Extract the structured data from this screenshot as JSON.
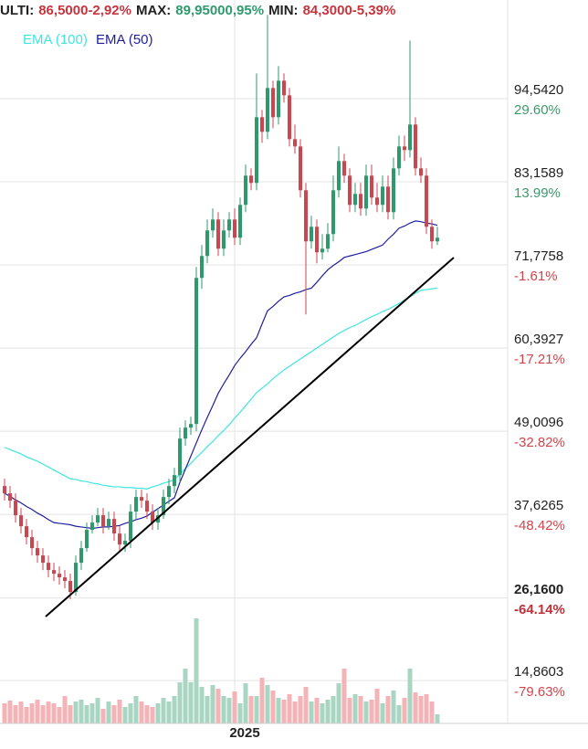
{
  "chart_data": {
    "type": "candlestick",
    "header": [
      {
        "text": "ULTI:",
        "color": "#222222"
      },
      {
        "text": "86,5000-2,92%",
        "color": "#c8343e"
      },
      {
        "text": "MAX:",
        "color": "#222222"
      },
      {
        "text": "89,95000,95%",
        "color": "#2e9a6c"
      },
      {
        "text": "MIN:",
        "color": "#222222"
      },
      {
        "text": "84,3000-5,39%",
        "color": "#c8343e"
      }
    ],
    "categories": [
      null,
      null,
      null,
      null,
      null,
      null,
      null,
      null,
      null,
      null,
      null,
      null,
      null,
      null,
      null,
      null,
      null,
      null,
      null,
      null,
      null,
      null,
      null,
      null,
      null,
      null,
      null,
      null,
      null,
      null,
      null,
      null,
      null,
      null,
      null,
      null,
      null,
      null,
      null,
      null,
      null,
      null,
      "2025",
      null,
      null,
      null,
      null,
      null,
      null,
      null,
      null,
      null,
      null,
      null,
      null,
      null,
      null,
      null,
      null,
      null,
      null,
      null,
      null,
      null,
      null,
      null,
      null,
      null,
      null,
      null,
      null,
      null,
      null,
      null,
      null,
      null,
      null,
      null,
      null,
      null
    ],
    "open": [
      41.5,
      40.5,
      39.5,
      37.5,
      36,
      34.5,
      33,
      32,
      31,
      30,
      29.5,
      29,
      28.5,
      27,
      31,
      33,
      35.5,
      36.5,
      37.5,
      36,
      37,
      35,
      33.5,
      34,
      38,
      40,
      39.5,
      38,
      36.5,
      37.5,
      40,
      41.5,
      43,
      48,
      49.5,
      50,
      70,
      73,
      76.5,
      78,
      74,
      76.5,
      78,
      75.5,
      80,
      84,
      83,
      92,
      90,
      96,
      92,
      97,
      95,
      89,
      88,
      82,
      75,
      77,
      73.5,
      74,
      76,
      82,
      86,
      84,
      80,
      81.5,
      79.5,
      84,
      81,
      80,
      82.5,
      79,
      85,
      88,
      87.5,
      91,
      85,
      84,
      77,
      75
    ],
    "high": [
      42.5,
      41.5,
      40.5,
      38.5,
      37,
      35.5,
      34,
      33,
      32,
      31,
      30.5,
      30,
      29.5,
      32,
      34,
      36.5,
      37.5,
      38.5,
      38.5,
      38,
      38,
      36,
      35,
      39,
      41,
      41,
      40.5,
      39,
      38.5,
      41,
      42.5,
      44,
      49.5,
      50.5,
      51,
      71.5,
      74.5,
      78,
      79.5,
      79,
      78,
      79,
      79.5,
      81,
      85.5,
      85,
      98,
      93,
      106,
      97,
      99,
      98,
      96,
      91,
      89,
      83,
      78.5,
      78,
      76,
      77.5,
      84,
      88,
      87,
      85,
      83,
      83,
      85.5,
      85.5,
      83,
      84,
      84,
      86.5,
      89.5,
      89.5,
      102.5,
      92,
      86.5,
      85,
      78,
      77
    ],
    "low": [
      39.5,
      38.5,
      36.5,
      35,
      33.5,
      32,
      31,
      30,
      29,
      28.5,
      28,
      27.5,
      26,
      26.5,
      30,
      32.5,
      35,
      36,
      35,
      35.5,
      34,
      32.5,
      32.5,
      33,
      37,
      38.5,
      37,
      35.5,
      35.5,
      37,
      39,
      40.5,
      42,
      47,
      48.5,
      49,
      68.5,
      72,
      75.5,
      73,
      73,
      75.5,
      74.5,
      74.5,
      79,
      82,
      82,
      88.5,
      89,
      90.5,
      91,
      94,
      88,
      87,
      81,
      65,
      74,
      72,
      72.5,
      73.5,
      75,
      81,
      83,
      79,
      79,
      78.5,
      78.5,
      80,
      79,
      79,
      78,
      78,
      84,
      86,
      86.5,
      84,
      83,
      76,
      74,
      74.5
    ],
    "close": [
      40.5,
      39.5,
      37.5,
      36,
      34.5,
      33,
      32,
      31,
      30,
      29.5,
      29,
      28.5,
      27,
      31,
      33,
      35.5,
      36.5,
      37.5,
      36,
      37,
      35,
      33.5,
      34,
      38,
      40,
      39.5,
      38,
      36.5,
      37.5,
      40,
      41.5,
      43,
      48,
      49.5,
      50,
      70,
      73,
      76.5,
      78,
      74,
      76.5,
      78,
      75.5,
      80,
      84,
      83,
      92,
      90,
      96,
      92,
      97,
      95,
      89,
      88,
      82,
      75,
      77,
      73.5,
      74,
      76,
      82,
      86,
      84,
      80,
      81.5,
      79.5,
      84,
      81,
      80,
      82.5,
      79,
      85,
      88,
      87.5,
      91,
      85,
      84,
      77,
      75,
      75.5
    ],
    "up_color": "#2e9a6c",
    "down_color": "#cc4650",
    "volume": [
      22,
      25,
      20,
      24,
      18,
      22,
      26,
      20,
      24,
      22,
      18,
      30,
      20,
      24,
      26,
      20,
      22,
      28,
      16,
      24,
      20,
      26,
      18,
      22,
      30,
      24,
      20,
      18,
      22,
      28,
      24,
      30,
      45,
      60,
      45,
      115,
      40,
      30,
      42,
      38,
      30,
      28,
      35,
      22,
      44,
      30,
      30,
      50,
      42,
      36,
      28,
      26,
      32,
      24,
      30,
      40,
      24,
      28,
      22,
      26,
      30,
      44,
      60,
      28,
      32,
      30,
      24,
      26,
      38,
      22,
      30,
      36,
      20,
      28,
      60,
      34,
      30,
      32,
      24,
      10
    ],
    "volume_up_color": "#a9d6c3",
    "volume_down_color": "#f4b3b6",
    "series": [
      {
        "name": "EMA (100)",
        "color": "#3fe6df",
        "values": [
          46.8,
          46.5,
          46.2,
          45.9,
          45.5,
          45.2,
          44.9,
          44.5,
          44.1,
          43.7,
          43.3,
          42.9,
          42.5,
          42.4,
          42.2,
          42.1,
          41.9,
          41.8,
          41.6,
          41.5,
          41.4,
          41.4,
          41.3,
          41.3,
          41.2,
          41.2,
          41.1,
          41.4,
          41.6,
          41.9,
          42.1,
          42.4,
          43.1,
          43.9,
          44.6,
          45.4,
          46.1,
          46.9,
          47.6,
          48.4,
          49.1,
          49.9,
          50.8,
          51.6,
          52.5,
          53.4,
          54.3,
          54.9,
          55.5,
          56.2,
          56.8,
          57.4,
          57.9,
          58.4,
          58.9,
          59.4,
          59.9,
          60.4,
          60.9,
          61.4,
          61.9,
          62.4,
          62.8,
          63.2,
          63.5,
          63.9,
          64.3,
          64.7,
          65.0,
          65.4,
          65.7,
          66.1,
          66.5,
          67.0,
          67.4,
          67.9,
          68.3,
          68.4,
          68.5,
          68.6
        ]
      },
      {
        "name": "EMA (50)",
        "color": "#1f1f9e",
        "values": [
          40.5,
          40.1,
          39.6,
          39.2,
          38.7,
          38.3,
          37.8,
          37.4,
          36.9,
          36.5,
          36.4,
          36.3,
          36.2,
          36.0,
          35.9,
          35.8,
          35.7,
          35.8,
          35.9,
          35.9,
          36.0,
          36.1,
          36.4,
          36.6,
          36.9,
          37.1,
          37.4,
          37.9,
          38.4,
          38.9,
          39.4,
          39.9,
          42.0,
          43.8,
          45.6,
          47.4,
          49.2,
          50.9,
          52.5,
          54.2,
          55.5,
          56.7,
          58.0,
          59.0,
          59.9,
          60.9,
          61.8,
          63.7,
          65.5,
          66.1,
          66.8,
          67.4,
          67.6,
          67.9,
          68.1,
          68.4,
          68.6,
          69.4,
          70.3,
          71.1,
          71.7,
          72.2,
          72.8,
          73.0,
          73.2,
          73.4,
          73.6,
          73.9,
          74.2,
          74.5,
          75.3,
          76.0,
          76.8,
          77.1,
          77.5,
          77.8,
          77.7,
          77.5,
          77.4,
          77.2
        ]
      }
    ],
    "ylim": [
      9,
      108.05
    ],
    "yticks": [
      {
        "value": 94.542,
        "label": "94,5420"
      },
      {
        "value": 83.1589,
        "label": "83,1589"
      },
      {
        "value": 71.7758,
        "label": "71,7758"
      },
      {
        "value": 60.3927,
        "label": "60,3927"
      },
      {
        "value": 49.0096,
        "label": "49,0096"
      },
      {
        "value": 37.6265,
        "label": "37,6265"
      },
      {
        "value": 26.16,
        "label": "26,1600"
      },
      {
        "value": 14.8603,
        "label": "14,8603"
      }
    ],
    "ytick_percents": [
      "29.60%",
      "13.99%",
      "-1.61%",
      "-17.21%",
      "-32.82%",
      "-48.42%",
      "-64.14%",
      "-79.63%"
    ],
    "ytick_percent_colors": [
      "#3a9a6a",
      "#3a9a6a",
      "#d0454c",
      "#d0454c",
      "#d0454c",
      "#d0454c",
      "#c0303a",
      "#d0454c"
    ],
    "bold_ytick": 6,
    "grid": true
  }
}
